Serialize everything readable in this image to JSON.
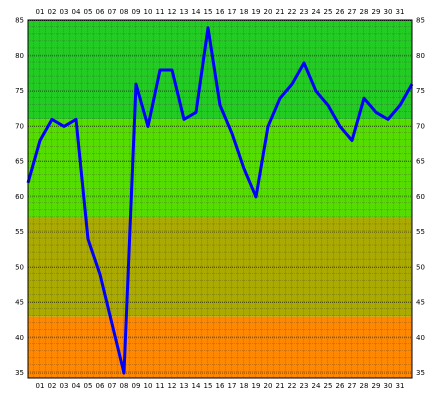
{
  "chart_data": {
    "type": "line",
    "categories": [
      null,
      "01",
      "02",
      "03",
      "04",
      "05",
      "06",
      "07",
      "08",
      "09",
      "10",
      "11",
      "12",
      "13",
      "14",
      "15",
      "16",
      "17",
      "18",
      "19",
      "20",
      "21",
      "22",
      "23",
      "24",
      "25",
      "26",
      "27",
      "28",
      "29",
      "30",
      "31",
      null
    ],
    "series": [
      {
        "color": "#0000ff",
        "values": [
          62,
          68,
          71,
          70,
          71,
          54,
          49,
          42,
          35,
          76,
          70,
          78,
          78,
          71,
          72,
          84,
          73,
          69,
          64,
          60,
          70,
          74,
          76,
          79,
          75,
          73,
          70,
          68,
          74,
          72,
          71,
          73,
          76
        ]
      }
    ],
    "ylim": [
      34.3,
      85.1
    ],
    "yticks": [
      35,
      40,
      45,
      50,
      55,
      60,
      65,
      70,
      75,
      80,
      85
    ],
    "bands": [
      {
        "from": 71,
        "to": 85.1,
        "color": "#22cc22"
      },
      {
        "from": 57,
        "to": 71,
        "color": "#55dd00"
      },
      {
        "from": 43,
        "to": 57,
        "color": "#aaaa00"
      },
      {
        "from": 34.3,
        "to": 43,
        "color": "#ff8800"
      }
    ],
    "grid": true
  }
}
